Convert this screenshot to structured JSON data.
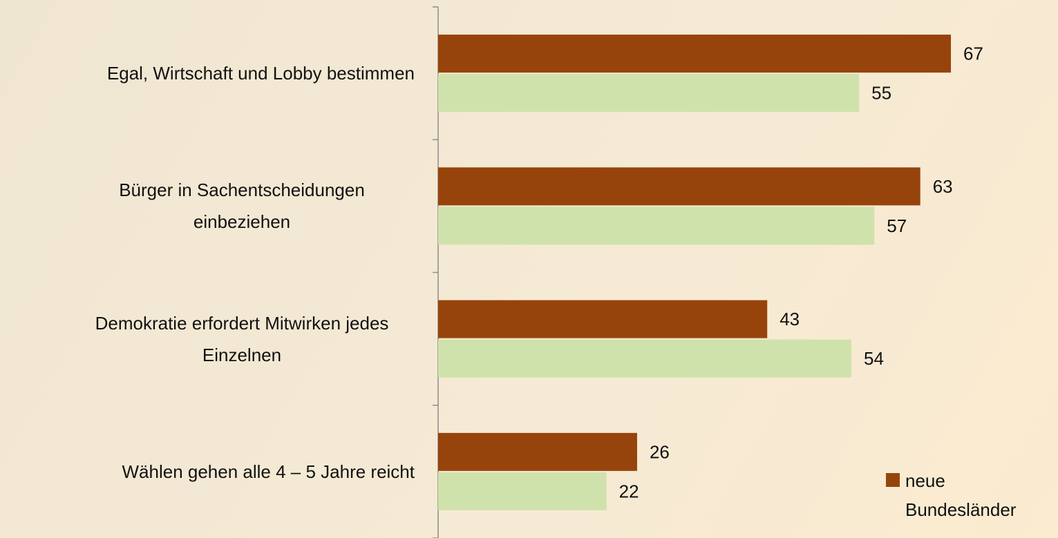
{
  "chart_data": {
    "type": "hbar",
    "categories": [
      "Egal, Wirtschaft und Lobby bestimmen",
      "Bürger in Sachentscheidungen einbeziehen",
      "Demokratie erfordert Mitwirken jedes Einzelnen",
      "Wählen gehen alle 4 – 5 Jahre reicht"
    ],
    "series": [
      {
        "name": "neue Bundesländer",
        "color": "#97440c",
        "values": [
          67,
          63,
          43,
          26
        ]
      },
      {
        "color": "#d0e2ab",
        "values": [
          55,
          57,
          54,
          22
        ]
      }
    ],
    "xlim": [
      0,
      80
    ],
    "legend": "lower right",
    "data_labels": true
  }
}
